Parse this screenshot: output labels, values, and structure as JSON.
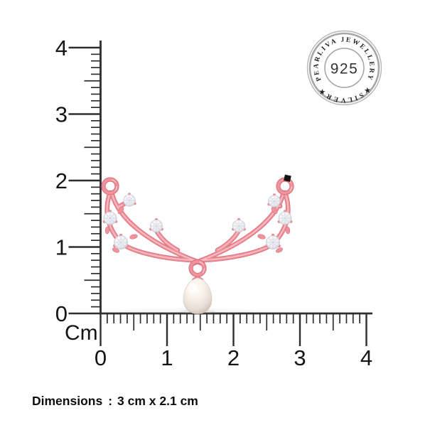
{
  "page": {
    "background": "#ffffff"
  },
  "rulers": {
    "unit_label": "Cm",
    "vertical": {
      "min": 0,
      "max": 4,
      "subdivisions": 10,
      "labels": [
        "4",
        "3",
        "2",
        "1",
        "0"
      ]
    },
    "horizontal": {
      "min": 0,
      "max": 4,
      "subdivisions": 10,
      "labels": [
        "0",
        "1",
        "2",
        "3",
        "4"
      ]
    }
  },
  "stamp": {
    "top_text": "PEARLIVA JEWELLERY",
    "bottom_text": "★SILVER★",
    "center_text": "925"
  },
  "product": {
    "name": "rose-gold-pearl-drop-pendant",
    "metal_color": "#ef929b",
    "pearl_color": "#f3ece3",
    "stone_color": "#ffffff",
    "stones_count": 8
  },
  "caption": {
    "label": "Dimensions",
    "separator": ":",
    "value": "3 cm x 2.1 cm"
  }
}
